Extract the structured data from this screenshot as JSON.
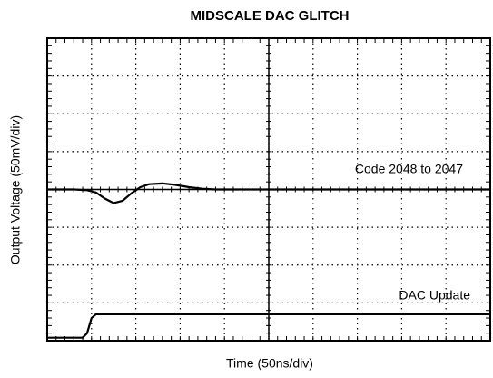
{
  "chart_data": {
    "type": "line",
    "title": "MIDSCALE DAC GLITCH",
    "x_label": "Time (50ns/div)",
    "y_label": "Output Voltage (50mV/div)",
    "series": [
      {
        "name": "Code 2048 to 2047",
        "color": "#000000",
        "x": [
          0,
          30,
          45,
          55,
          65,
          75,
          85,
          95,
          105,
          115,
          130,
          145,
          160,
          175,
          190,
          500
        ],
        "values": [
          0,
          0,
          -1,
          -4,
          -12,
          -18,
          -15,
          -5,
          3,
          7,
          8,
          6,
          3,
          1,
          0,
          0
        ]
      },
      {
        "name": "DAC Update",
        "color": "#000000",
        "x": [
          0,
          40,
          45,
          50,
          55,
          500
        ],
        "values": [
          -196,
          -196,
          -190,
          -170,
          -165,
          -165
        ]
      }
    ],
    "xlim": [
      0,
      500
    ],
    "xticks": [
      0,
      50,
      100,
      150,
      200,
      250,
      300,
      350,
      400,
      450,
      500
    ],
    "ylim": [
      -200,
      200
    ],
    "yticks": [
      -200,
      -150,
      -100,
      -50,
      0,
      50,
      100,
      150,
      200
    ],
    "grid": true
  }
}
